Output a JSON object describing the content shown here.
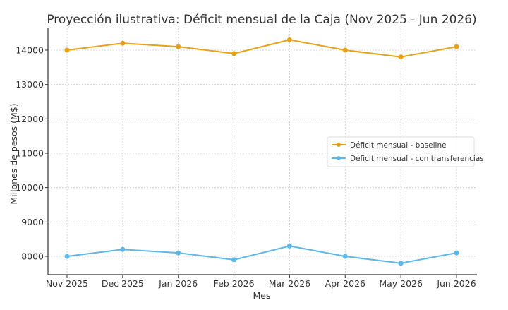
{
  "chart_data": {
    "type": "line",
    "title": "Proyección ilustrativa: Déficit mensual de la Caja (Nov 2025 - Jun 2026)",
    "xlabel": "Mes",
    "ylabel": "Millones de pesos (M$)",
    "categories": [
      "Nov 2025",
      "Dec 2025",
      "Jan 2026",
      "Feb 2026",
      "Mar 2026",
      "Apr 2026",
      "May 2026",
      "Jun 2026"
    ],
    "yticks": [
      8000,
      9000,
      10000,
      11000,
      12000,
      13000,
      14000
    ],
    "ylim": [
      7450,
      14650
    ],
    "grid": true,
    "legend_position": "center-right",
    "series": [
      {
        "name": "Déficit mensual - baseline",
        "color": "#E8A21A",
        "values": [
          14000,
          14200,
          14100,
          13900,
          14300,
          14000,
          13800,
          14100
        ]
      },
      {
        "name": "Déficit mensual - con transferencias",
        "color": "#5DB7E8",
        "values": [
          8000,
          8200,
          8100,
          7900,
          8300,
          8000,
          7800,
          8100
        ]
      }
    ]
  }
}
